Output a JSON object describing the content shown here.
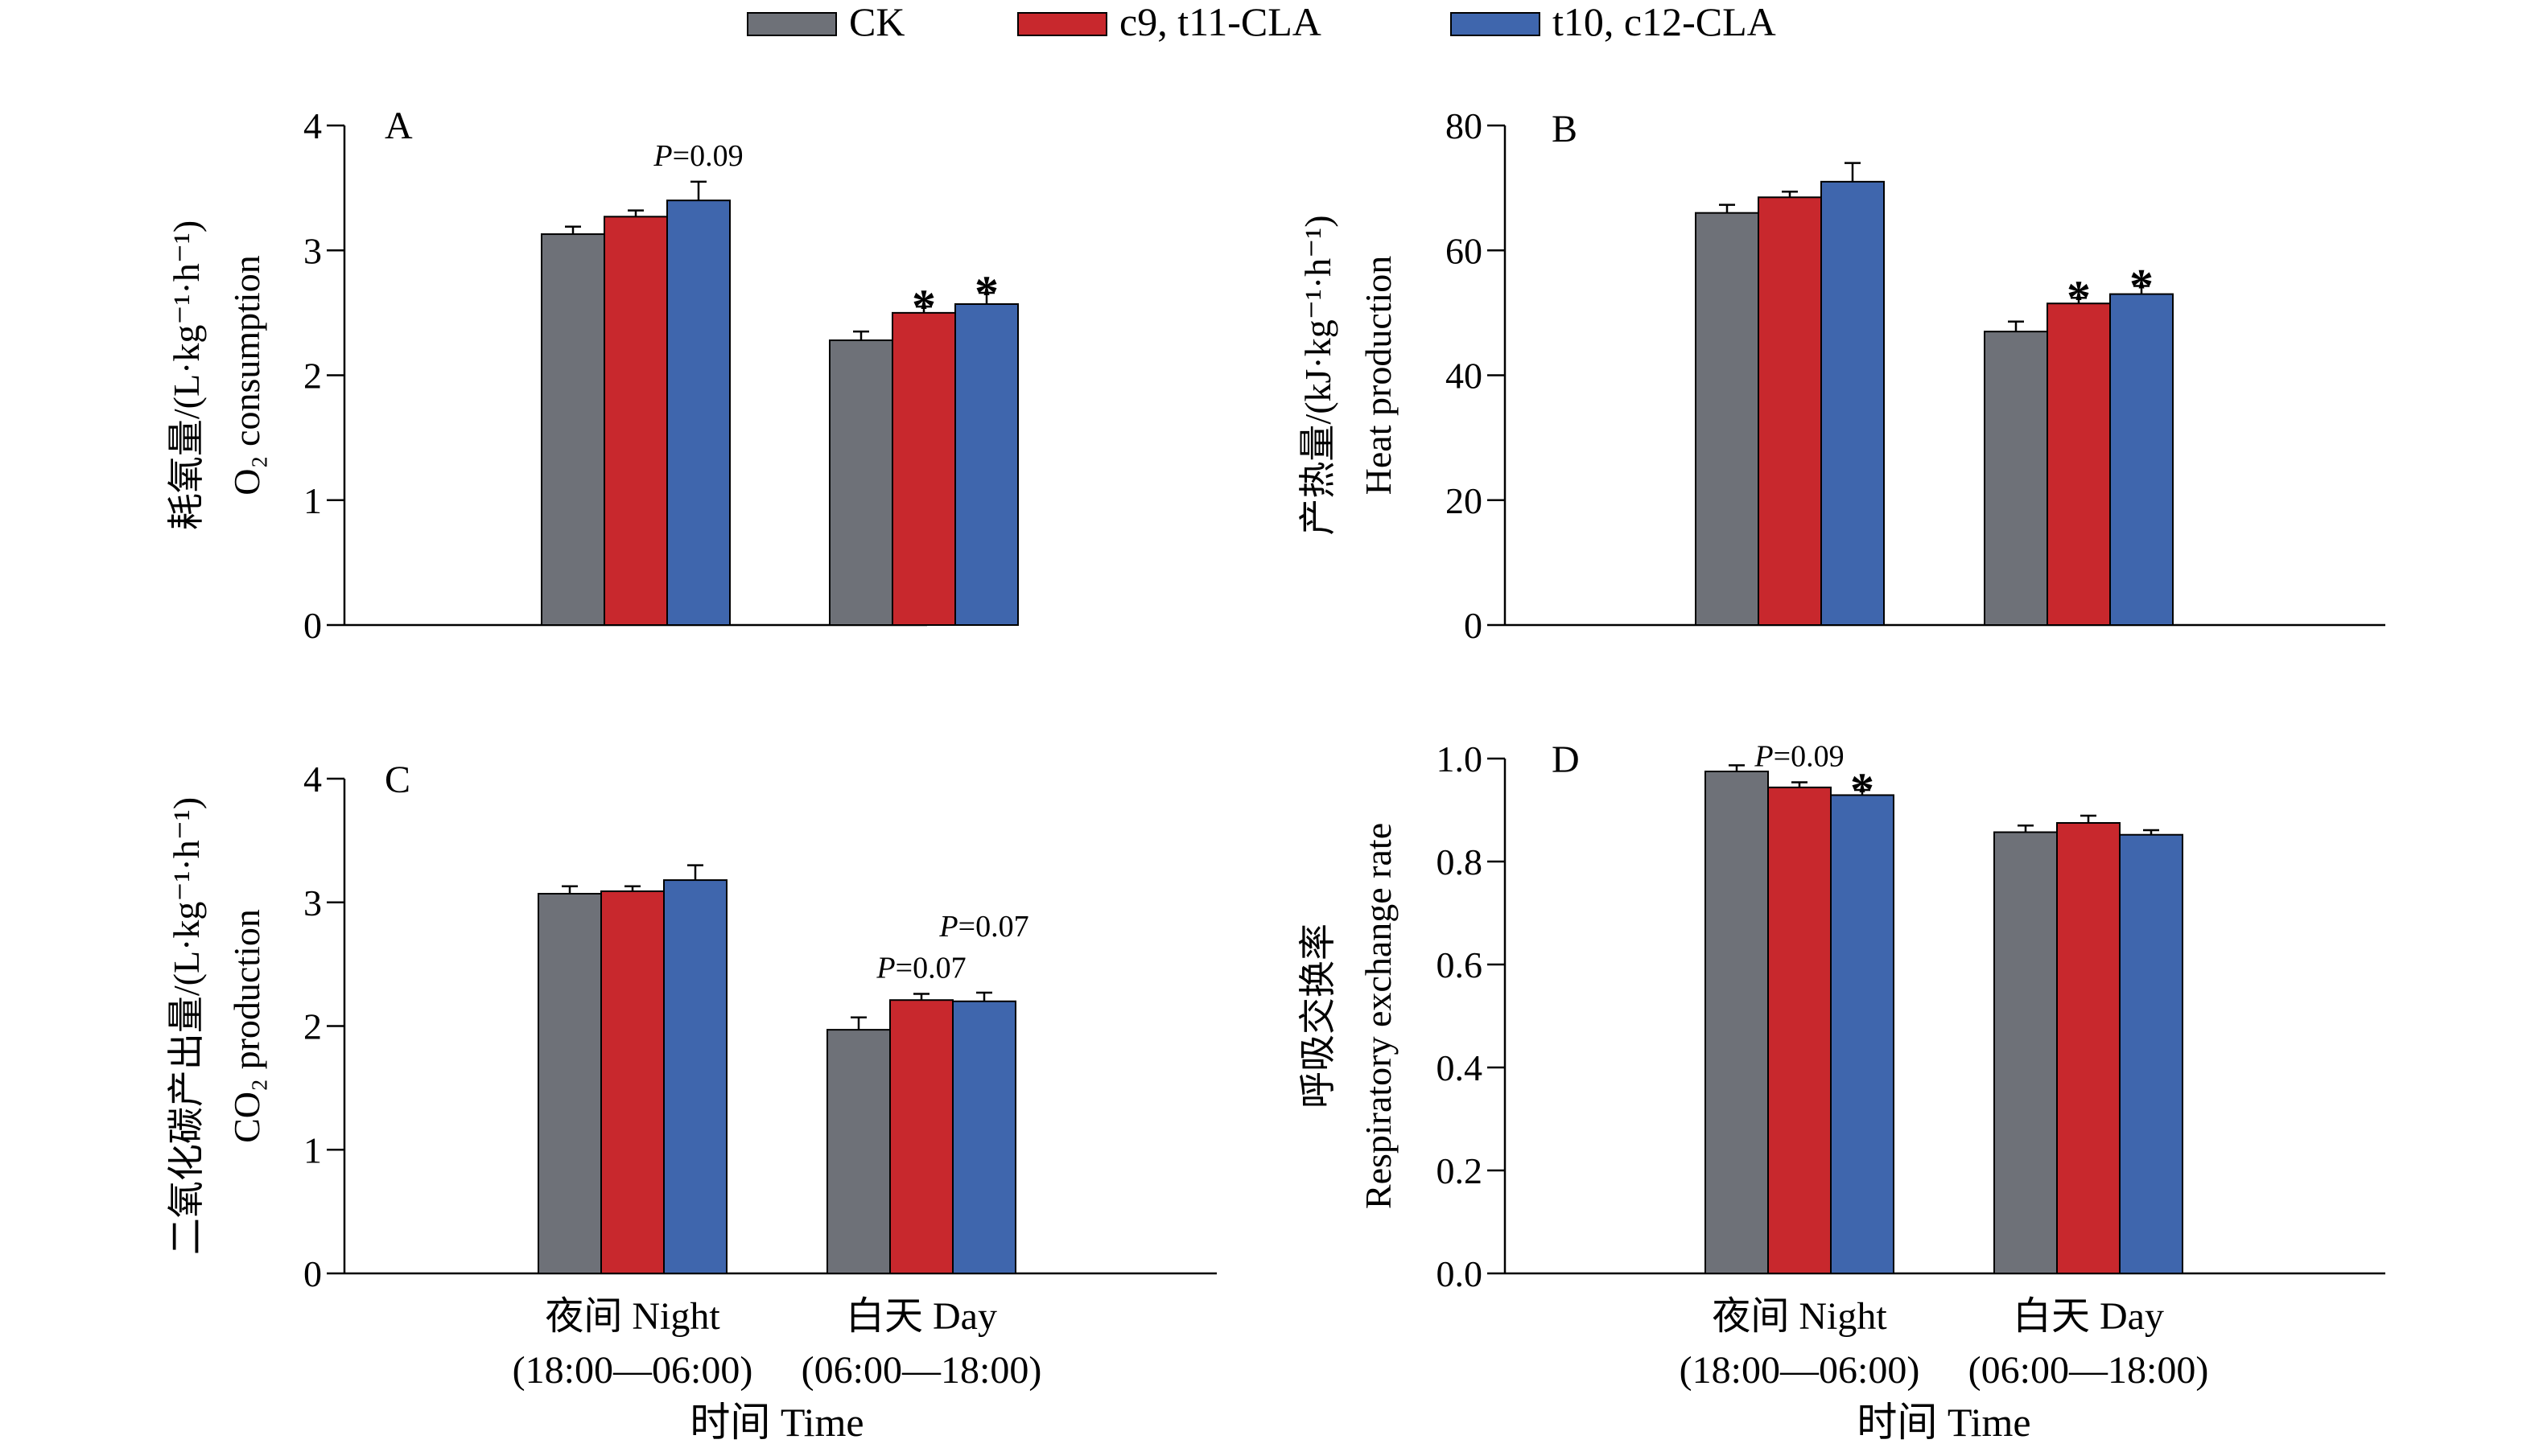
{
  "chart_data": {
    "type": "bar",
    "legend": {
      "placement": "top-center",
      "items": [
        {
          "label": "CK",
          "color": "#6E7178"
        },
        {
          "label": "c9, t11-CLA",
          "color": "#C8282D"
        },
        {
          "label": "t10, c12-CLA",
          "color": "#3F66AD"
        }
      ]
    },
    "categories": [
      {
        "line1": "夜间 Night",
        "line2": "(18:00—06:00)"
      },
      {
        "line1": "白天 Day",
        "line2": "(06:00—18:00)"
      }
    ],
    "xlabel": "时间 Time",
    "panels": [
      {
        "letter": "A",
        "ylabel_cn": "耗氧量/(L·kg⁻¹·h⁻¹)",
        "ylabel_en": "O₂ consumption",
        "ylim": [
          0,
          4
        ],
        "yticks": [
          "0",
          "1",
          "2",
          "3",
          "4"
        ],
        "show_xlabels": false,
        "series": [
          {
            "name": "CK",
            "values": [
              3.13,
              2.28
            ],
            "errors": [
              0.06,
              0.07
            ]
          },
          {
            "name": "c9, t11-CLA",
            "values": [
              3.27,
              2.5
            ],
            "errors": [
              0.05,
              0.05
            ]
          },
          {
            "name": "t10, c12-CLA",
            "values": [
              3.4,
              2.57
            ],
            "errors": [
              0.15,
              0.09
            ]
          }
        ],
        "annotations": [
          {
            "series": 2,
            "category": 0,
            "text": "P=0.09",
            "kind": "p"
          },
          {
            "series": 1,
            "category": 1,
            "text": "*",
            "kind": "star"
          },
          {
            "series": 2,
            "category": 1,
            "text": "*",
            "kind": "star"
          }
        ]
      },
      {
        "letter": "B",
        "ylabel_cn": "产热量/(kJ·kg⁻¹·h⁻¹)",
        "ylabel_en": "Heat production",
        "ylim": [
          0,
          80
        ],
        "yticks": [
          "0",
          "20",
          "40",
          "60",
          "80"
        ],
        "show_xlabels": false,
        "series": [
          {
            "name": "CK",
            "values": [
              66,
              47
            ],
            "errors": [
              1.3,
              1.6
            ]
          },
          {
            "name": "c9, t11-CLA",
            "values": [
              68.5,
              51.5
            ],
            "errors": [
              0.9,
              0.9
            ]
          },
          {
            "name": "t10, c12-CLA",
            "values": [
              71,
              53
            ],
            "errors": [
              3.0,
              1.3
            ]
          }
        ],
        "annotations": [
          {
            "series": 1,
            "category": 1,
            "text": "*",
            "kind": "star"
          },
          {
            "series": 2,
            "category": 1,
            "text": "*",
            "kind": "star"
          }
        ]
      },
      {
        "letter": "C",
        "ylabel_cn": "二氧化碳产出量/(L·kg⁻¹·h⁻¹)",
        "ylabel_en": "CO₂ production",
        "ylim": [
          0,
          4
        ],
        "yticks": [
          "0",
          "1",
          "2",
          "3",
          "4"
        ],
        "show_xlabels": true,
        "series": [
          {
            "name": "CK",
            "values": [
              3.07,
              1.97
            ],
            "errors": [
              0.06,
              0.1
            ]
          },
          {
            "name": "c9, t11-CLA",
            "values": [
              3.09,
              2.21
            ],
            "errors": [
              0.04,
              0.05
            ]
          },
          {
            "name": "t10, c12-CLA",
            "values": [
              3.18,
              2.2
            ],
            "errors": [
              0.12,
              0.07
            ]
          }
        ],
        "annotations": [
          {
            "series": 1,
            "category": 1,
            "text": "P=0.07",
            "kind": "p"
          },
          {
            "series": 2,
            "category": 1,
            "text": "P=0.07",
            "kind": "p-high"
          }
        ]
      },
      {
        "letter": "D",
        "ylabel_cn": "呼吸交换率",
        "ylabel_en": "Respiratory exchange rate",
        "ylim": [
          0,
          1.0
        ],
        "yticks": [
          "0.0",
          "0.2",
          "0.4",
          "0.6",
          "0.8",
          "1.0"
        ],
        "show_xlabels": true,
        "series": [
          {
            "name": "CK",
            "values": [
              0.975,
              0.857
            ],
            "errors": [
              0.012,
              0.013
            ]
          },
          {
            "name": "c9, t11-CLA",
            "values": [
              0.944,
              0.875
            ],
            "errors": [
              0.01,
              0.014
            ]
          },
          {
            "name": "t10, c12-CLA",
            "values": [
              0.929,
              0.852
            ],
            "errors": [
              0.01,
              0.009
            ]
          }
        ],
        "annotations": [
          {
            "series": 1,
            "category": 0,
            "text": "P=0.09",
            "kind": "p"
          },
          {
            "series": 2,
            "category": 0,
            "text": "*",
            "kind": "star"
          }
        ]
      }
    ]
  }
}
